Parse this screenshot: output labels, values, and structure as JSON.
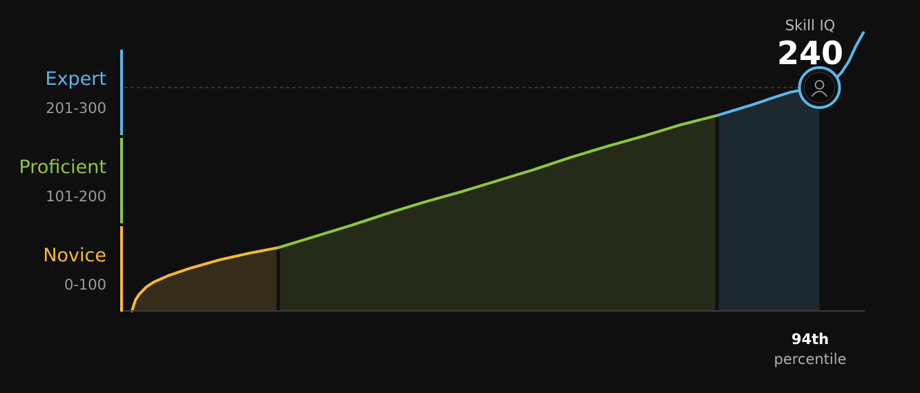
{
  "chart_data": {
    "type": "area",
    "title": "",
    "xlabel": "",
    "ylabel": "",
    "ylim": [
      0,
      300
    ],
    "xlim": [
      0,
      100
    ],
    "score_label": "Skill IQ",
    "score": 240,
    "percentile_value": "94th",
    "percentile_label": "percentile",
    "bands": [
      {
        "name": "Novice",
        "range": "0-100",
        "min": 0,
        "max": 100,
        "color": "#f5b937",
        "fill": "#352d19"
      },
      {
        "name": "Proficient",
        "range": "101-200",
        "min": 101,
        "max": 200,
        "color": "#8fc640",
        "fill": "#252b18"
      },
      {
        "name": "Expert",
        "range": "201-300",
        "min": 201,
        "max": 300,
        "color": "#5bb6ea",
        "fill": "#1c2931"
      }
    ],
    "curve": {
      "x": [
        0,
        0.5,
        1,
        2,
        3,
        5,
        8,
        12,
        16,
        20,
        25,
        30,
        35,
        40,
        45,
        50,
        55,
        60,
        65,
        70,
        75,
        80,
        85,
        88,
        90,
        92,
        93,
        94,
        95,
        96,
        97,
        98,
        99,
        100
      ],
      "y": [
        0,
        12,
        18,
        26,
        31,
        38,
        46,
        55,
        62,
        68,
        80,
        92,
        105,
        117,
        128,
        140,
        152,
        165,
        177,
        188,
        200,
        210,
        222,
        230,
        235,
        238,
        239,
        240,
        243,
        248,
        256,
        268,
        285,
        299
      ]
    },
    "transitions": [
      20,
      80
    ],
    "marker": {
      "x": 94,
      "y": 240,
      "icon": "user-icon"
    },
    "highlight_end_x": 94
  }
}
